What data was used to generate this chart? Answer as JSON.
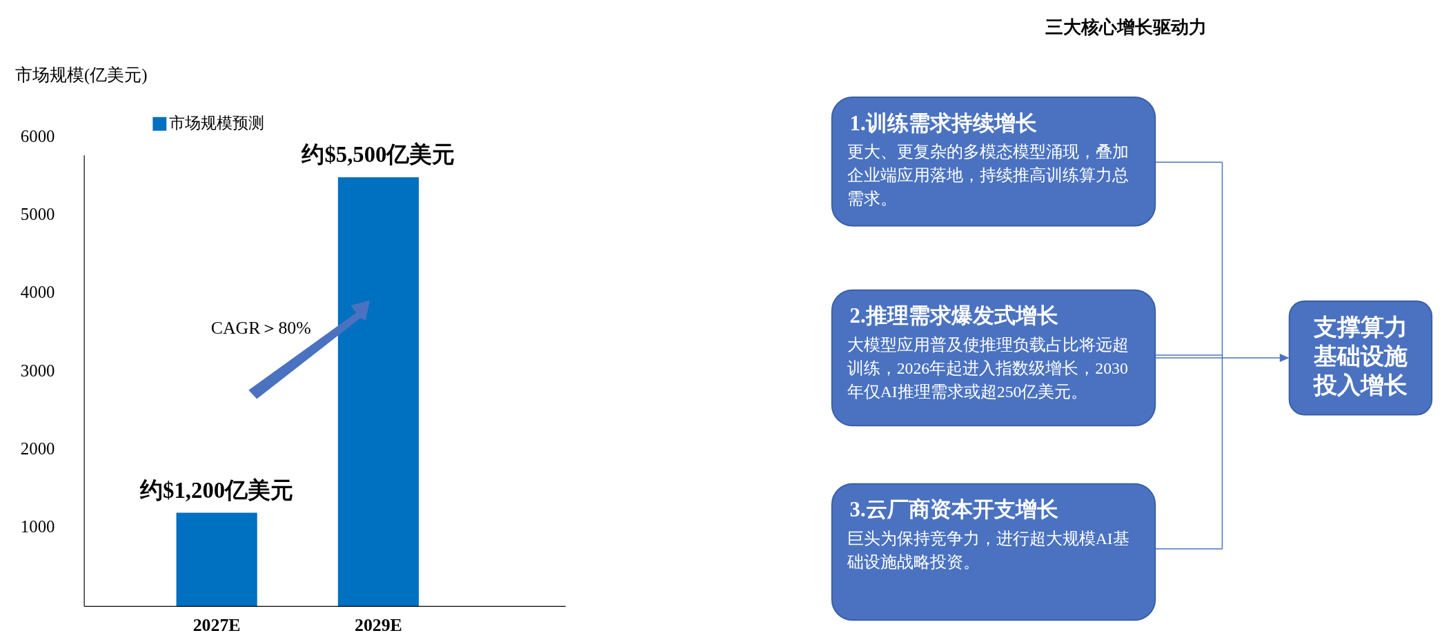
{
  "chart_data": [
    {
      "type": "bar",
      "ylabel": "市场规模(亿美元)",
      "categories": [
        "2027E",
        "2029E"
      ],
      "series": [
        {
          "name": "市场规模预测",
          "color": "#0070c0",
          "values": [
            1200,
            5500
          ],
          "value_labels": [
            "约$1,200亿美元",
            "约$5,500亿美元"
          ]
        }
      ],
      "ylim": [
        0,
        6000
      ],
      "yticks": [
        1000,
        2000,
        3000,
        4000,
        5000,
        6000
      ],
      "grid": false,
      "legend": "top left",
      "annotations": [
        "CAGR＞80%"
      ]
    },
    {
      "type": "other",
      "title": "三大核心增长驱动力",
      "annotations": [
        "1.训练需求持续增长",
        "更大、更复杂的多模态模型涌现，叠加企业端应用落地，持续推高训练算力总需求。",
        "2.推理需求爆发式增长",
        "大模型应用普及使推理负载占比将远超训练，2026年起进入指数级增长，2030年仅AI推理需求或超250亿美元。",
        "3.云厂商资本开支增长",
        "巨头为保持竞争力，进行超大规模AI基础设施战略投资。",
        "支撑算力基础设施投入增长"
      ]
    }
  ]
}
